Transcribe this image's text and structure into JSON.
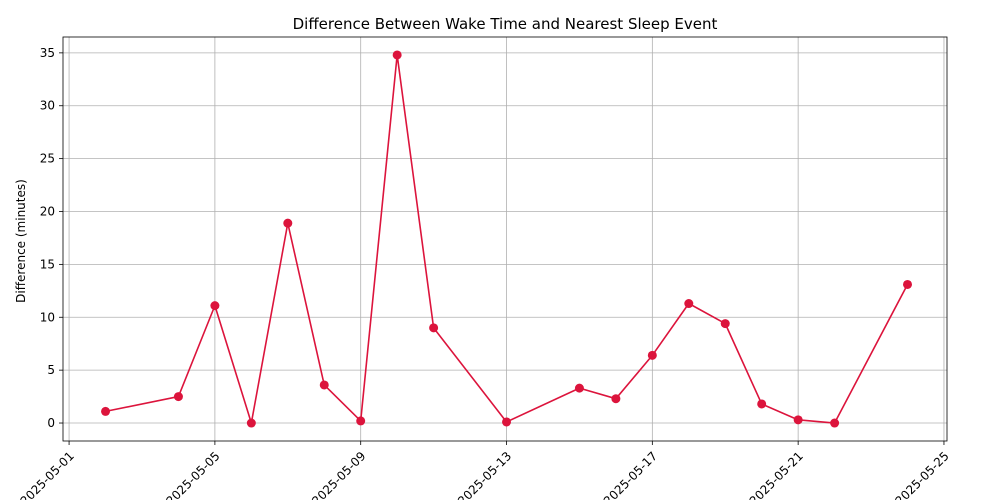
{
  "chart_data": {
    "type": "line",
    "title": "Difference Between Wake Time and Nearest Sleep Event",
    "xlabel": "",
    "ylabel": "Difference (minutes)",
    "grid": true,
    "line_color": "#DC143C",
    "marker_color": "#DC143C",
    "grid_color": "#b0b0b0",
    "x_tick_labels": [
      "2025-05-01",
      "2025-05-05",
      "2025-05-09",
      "2025-05-13",
      "2025-05-17",
      "2025-05-21",
      "2025-05-25"
    ],
    "x_ticks": [
      "2025-05-01",
      "2025-05-05",
      "2025-05-09",
      "2025-05-13",
      "2025-05-17",
      "2025-05-21",
      "2025-05-25"
    ],
    "y_ticks": [
      0,
      5,
      10,
      15,
      20,
      25,
      30,
      35
    ],
    "ylim": [
      -1.7,
      36.5
    ],
    "xlim": [
      "2025-04-30T20:00",
      "2025-05-25T02:00"
    ],
    "x": [
      "2025-05-02",
      "2025-05-04",
      "2025-05-05",
      "2025-05-06",
      "2025-05-07",
      "2025-05-08",
      "2025-05-09",
      "2025-05-10",
      "2025-05-11",
      "2025-05-13",
      "2025-05-15",
      "2025-05-16",
      "2025-05-17",
      "2025-05-18",
      "2025-05-19",
      "2025-05-20",
      "2025-05-21",
      "2025-05-22",
      "2025-05-24"
    ],
    "series": [
      {
        "values": [
          1.1,
          2.5,
          11.1,
          0.0,
          18.9,
          3.6,
          0.2,
          34.8,
          9.0,
          0.1,
          3.3,
          2.3,
          6.4,
          11.3,
          9.4,
          1.8,
          0.3,
          0.0,
          13.1
        ]
      }
    ]
  }
}
